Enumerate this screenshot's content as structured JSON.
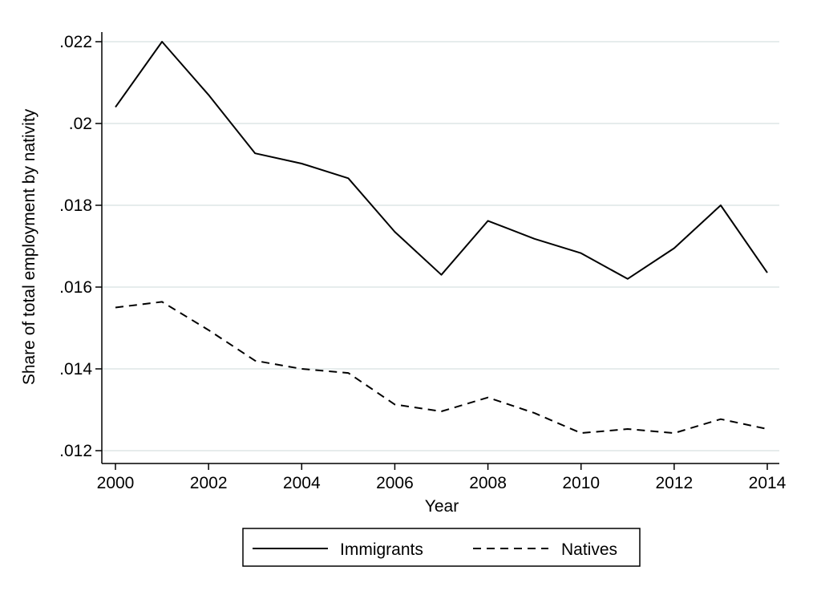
{
  "chart_data": {
    "type": "line",
    "xlabel": "Year",
    "ylabel": "Share of total employment by nativity",
    "x": [
      2000,
      2001,
      2002,
      2003,
      2004,
      2005,
      2006,
      2007,
      2008,
      2009,
      2010,
      2011,
      2012,
      2013,
      2014
    ],
    "xlim": [
      2000,
      2014
    ],
    "xticks": [
      2000,
      2002,
      2004,
      2006,
      2008,
      2010,
      2012,
      2014
    ],
    "xtick_labels": [
      "2000",
      "2002",
      "2004",
      "2006",
      "2008",
      "2010",
      "2012",
      "2014"
    ],
    "ylim": [
      0.012,
      0.022
    ],
    "yticks": [
      0.012,
      0.014,
      0.016,
      0.018,
      0.02,
      0.022
    ],
    "ytick_labels": [
      ".012",
      ".014",
      ".016",
      ".018",
      ".02",
      ".022"
    ],
    "grid": "horizontal",
    "legend_position": "bottom",
    "series": [
      {
        "name": "Immigrants",
        "style": "solid",
        "color": "#000000",
        "values": [
          0.0204,
          0.022,
          0.0207,
          0.01927,
          0.01902,
          0.01866,
          0.01735,
          0.0163,
          0.01762,
          0.01718,
          0.01683,
          0.0162,
          0.01695,
          0.018,
          0.01635
        ]
      },
      {
        "name": "Natives",
        "style": "dashed",
        "color": "#000000",
        "values": [
          0.0155,
          0.01564,
          0.01495,
          0.0142,
          0.014,
          0.0139,
          0.01313,
          0.01296,
          0.0133,
          0.01292,
          0.01243,
          0.01253,
          0.01243,
          0.01277,
          0.01253
        ]
      }
    ]
  }
}
